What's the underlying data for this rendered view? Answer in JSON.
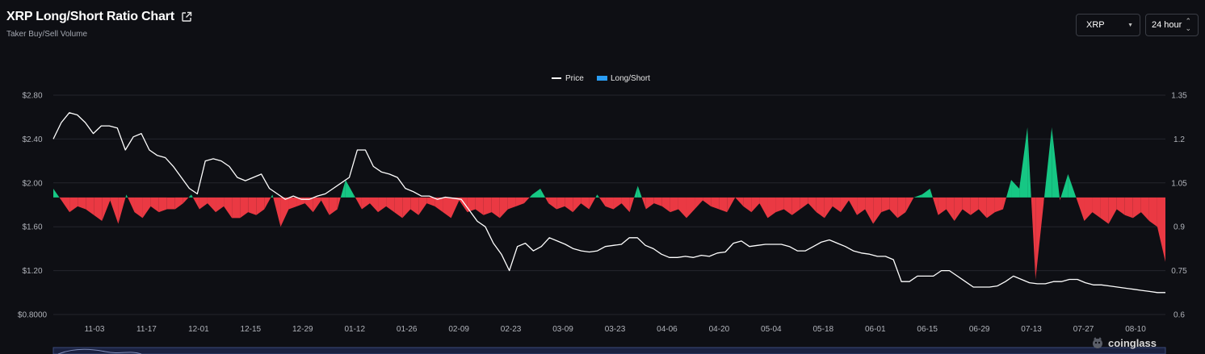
{
  "header": {
    "title": "XRP Long/Short Ratio Chart",
    "subtitle": "Taker Buy/Sell Volume"
  },
  "controls": {
    "coin": "XRP",
    "period": "24 hour"
  },
  "brand": "coinglass",
  "chart_data": {
    "type": "line",
    "legend": [
      "Price",
      "Long/Short"
    ],
    "legend_position": "top-center",
    "grid": true,
    "x_ticks": [
      "11-03",
      "11-17",
      "12-01",
      "12-15",
      "12-29",
      "01-12",
      "01-26",
      "02-09",
      "02-23",
      "03-09",
      "03-23",
      "04-06",
      "04-20",
      "05-04",
      "05-18",
      "06-01",
      "06-15",
      "06-29",
      "07-13",
      "07-27",
      "08-10"
    ],
    "y_left_ticks": [
      "$2.80",
      "$2.40",
      "$2.00",
      "$1.60",
      "$1.20",
      "$0.8000"
    ],
    "y_left_range": [
      0.8,
      2.8
    ],
    "y_right_ticks": [
      "1.35",
      "1.2",
      "1.05",
      "0.9",
      "0.75",
      "0.6"
    ],
    "y_right_range": [
      0.6,
      1.35
    ],
    "ratio_baseline": 1.0,
    "series": [
      {
        "name": "Price",
        "color": "#ffffff",
        "values": [
          2.4,
          2.55,
          2.64,
          2.62,
          2.55,
          2.45,
          2.52,
          2.52,
          2.5,
          2.3,
          2.42,
          2.45,
          2.3,
          2.25,
          2.23,
          2.15,
          2.05,
          1.95,
          1.9,
          2.2,
          2.22,
          2.2,
          2.15,
          2.05,
          2.02,
          2.05,
          2.08,
          1.95,
          1.9,
          1.85,
          1.88,
          1.85,
          1.85,
          1.88,
          1.9,
          1.95,
          2.0,
          2.05,
          2.3,
          2.3,
          2.15,
          2.1,
          2.08,
          2.05,
          1.95,
          1.92,
          1.88,
          1.88,
          1.85,
          1.87,
          1.86,
          1.85,
          1.75,
          1.65,
          1.6,
          1.45,
          1.35,
          1.2,
          1.42,
          1.45,
          1.38,
          1.42,
          1.5,
          1.47,
          1.44,
          1.4,
          1.38,
          1.37,
          1.38,
          1.42,
          1.43,
          1.44,
          1.5,
          1.5,
          1.43,
          1.4,
          1.35,
          1.32,
          1.32,
          1.33,
          1.32,
          1.34,
          1.33,
          1.36,
          1.37,
          1.45,
          1.47,
          1.42,
          1.43,
          1.44,
          1.44,
          1.44,
          1.42,
          1.38,
          1.38,
          1.42,
          1.46,
          1.48,
          1.45,
          1.42,
          1.38,
          1.36,
          1.35,
          1.33,
          1.33,
          1.3,
          1.1,
          1.1,
          1.15,
          1.15,
          1.15,
          1.2,
          1.2,
          1.15,
          1.1,
          1.05,
          1.05,
          1.05,
          1.06,
          1.1,
          1.15,
          1.12,
          1.09,
          1.08,
          1.08,
          1.1,
          1.1,
          1.12,
          1.12,
          1.09,
          1.07,
          1.07,
          1.06,
          1.05,
          1.04,
          1.03,
          1.02,
          1.01,
          1.0,
          1.0
        ]
      },
      {
        "name": "Long/Short",
        "color_positive": "#16c784",
        "color_negative": "#ea3943",
        "values": [
          1.03,
          0.99,
          0.95,
          0.97,
          0.96,
          0.94,
          0.92,
          0.99,
          0.91,
          1.01,
          0.95,
          0.93,
          0.97,
          0.95,
          0.96,
          0.96,
          0.98,
          1.01,
          0.96,
          0.98,
          0.95,
          0.97,
          0.93,
          0.93,
          0.95,
          0.94,
          0.96,
          1.01,
          0.9,
          0.96,
          0.97,
          0.98,
          0.95,
          0.99,
          0.94,
          0.96,
          1.06,
          1.01,
          0.96,
          0.98,
          0.95,
          0.97,
          0.95,
          0.93,
          0.96,
          0.94,
          0.98,
          0.97,
          0.95,
          0.93,
          0.99,
          0.95,
          0.96,
          0.94,
          0.95,
          0.93,
          0.96,
          0.97,
          0.98,
          1.01,
          1.03,
          0.98,
          0.96,
          0.97,
          0.95,
          0.98,
          0.96,
          1.01,
          0.97,
          0.96,
          0.98,
          0.95,
          1.04,
          0.96,
          0.98,
          0.97,
          0.95,
          0.96,
          0.93,
          0.96,
          0.99,
          0.97,
          0.96,
          0.95,
          1.0,
          0.97,
          0.95,
          0.98,
          0.93,
          0.95,
          0.96,
          0.94,
          0.96,
          0.98,
          0.95,
          0.93,
          0.97,
          0.95,
          0.99,
          0.94,
          0.96,
          0.91,
          0.95,
          0.96,
          0.93,
          0.95,
          1.0,
          1.01,
          1.03,
          0.94,
          0.96,
          0.92,
          0.96,
          0.94,
          0.96,
          0.93,
          0.95,
          0.96,
          1.06,
          1.03,
          1.24,
          0.72,
          0.98,
          1.24,
          0.99,
          1.08,
          1.0,
          0.92,
          0.95,
          0.93,
          0.91,
          0.96,
          0.94,
          0.93,
          0.95,
          0.92,
          0.9,
          0.78
        ]
      }
    ]
  }
}
